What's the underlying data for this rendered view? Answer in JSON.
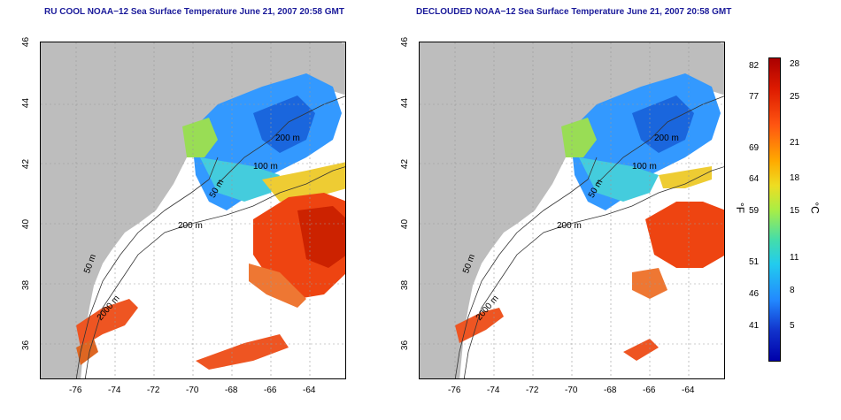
{
  "titles": {
    "left": "RU COOL NOAA−12 Sea Surface Temperature June 21, 2007 20:58 GMT",
    "right": "DECLOUDED NOAA−12 Sea Surface Temperature June 21, 2007 20:58 GMT"
  },
  "axes": {
    "lat_ticks": [
      "46",
      "44",
      "42",
      "40",
      "38",
      "36"
    ],
    "lon_ticks": [
      "-76",
      "-74",
      "-72",
      "-70",
      "-68",
      "-66",
      "-64"
    ]
  },
  "contour_labels": [
    "50 m",
    "100 m",
    "200 m",
    "200 m",
    "50 m",
    "2000 m"
  ],
  "colorbar": {
    "fahrenheit_ticks": [
      "82",
      "77",
      "69",
      "64",
      "59",
      "51",
      "46",
      "41"
    ],
    "celsius_ticks": [
      "28",
      "25",
      "21",
      "18",
      "15",
      "11",
      "8",
      "5"
    ],
    "unit_f": "°F",
    "unit_c": "°C"
  },
  "colors": {
    "land": "#bdbdbd",
    "cold": "#0000aa",
    "warm": "#cc0000",
    "title": "#1a1a9a"
  }
}
